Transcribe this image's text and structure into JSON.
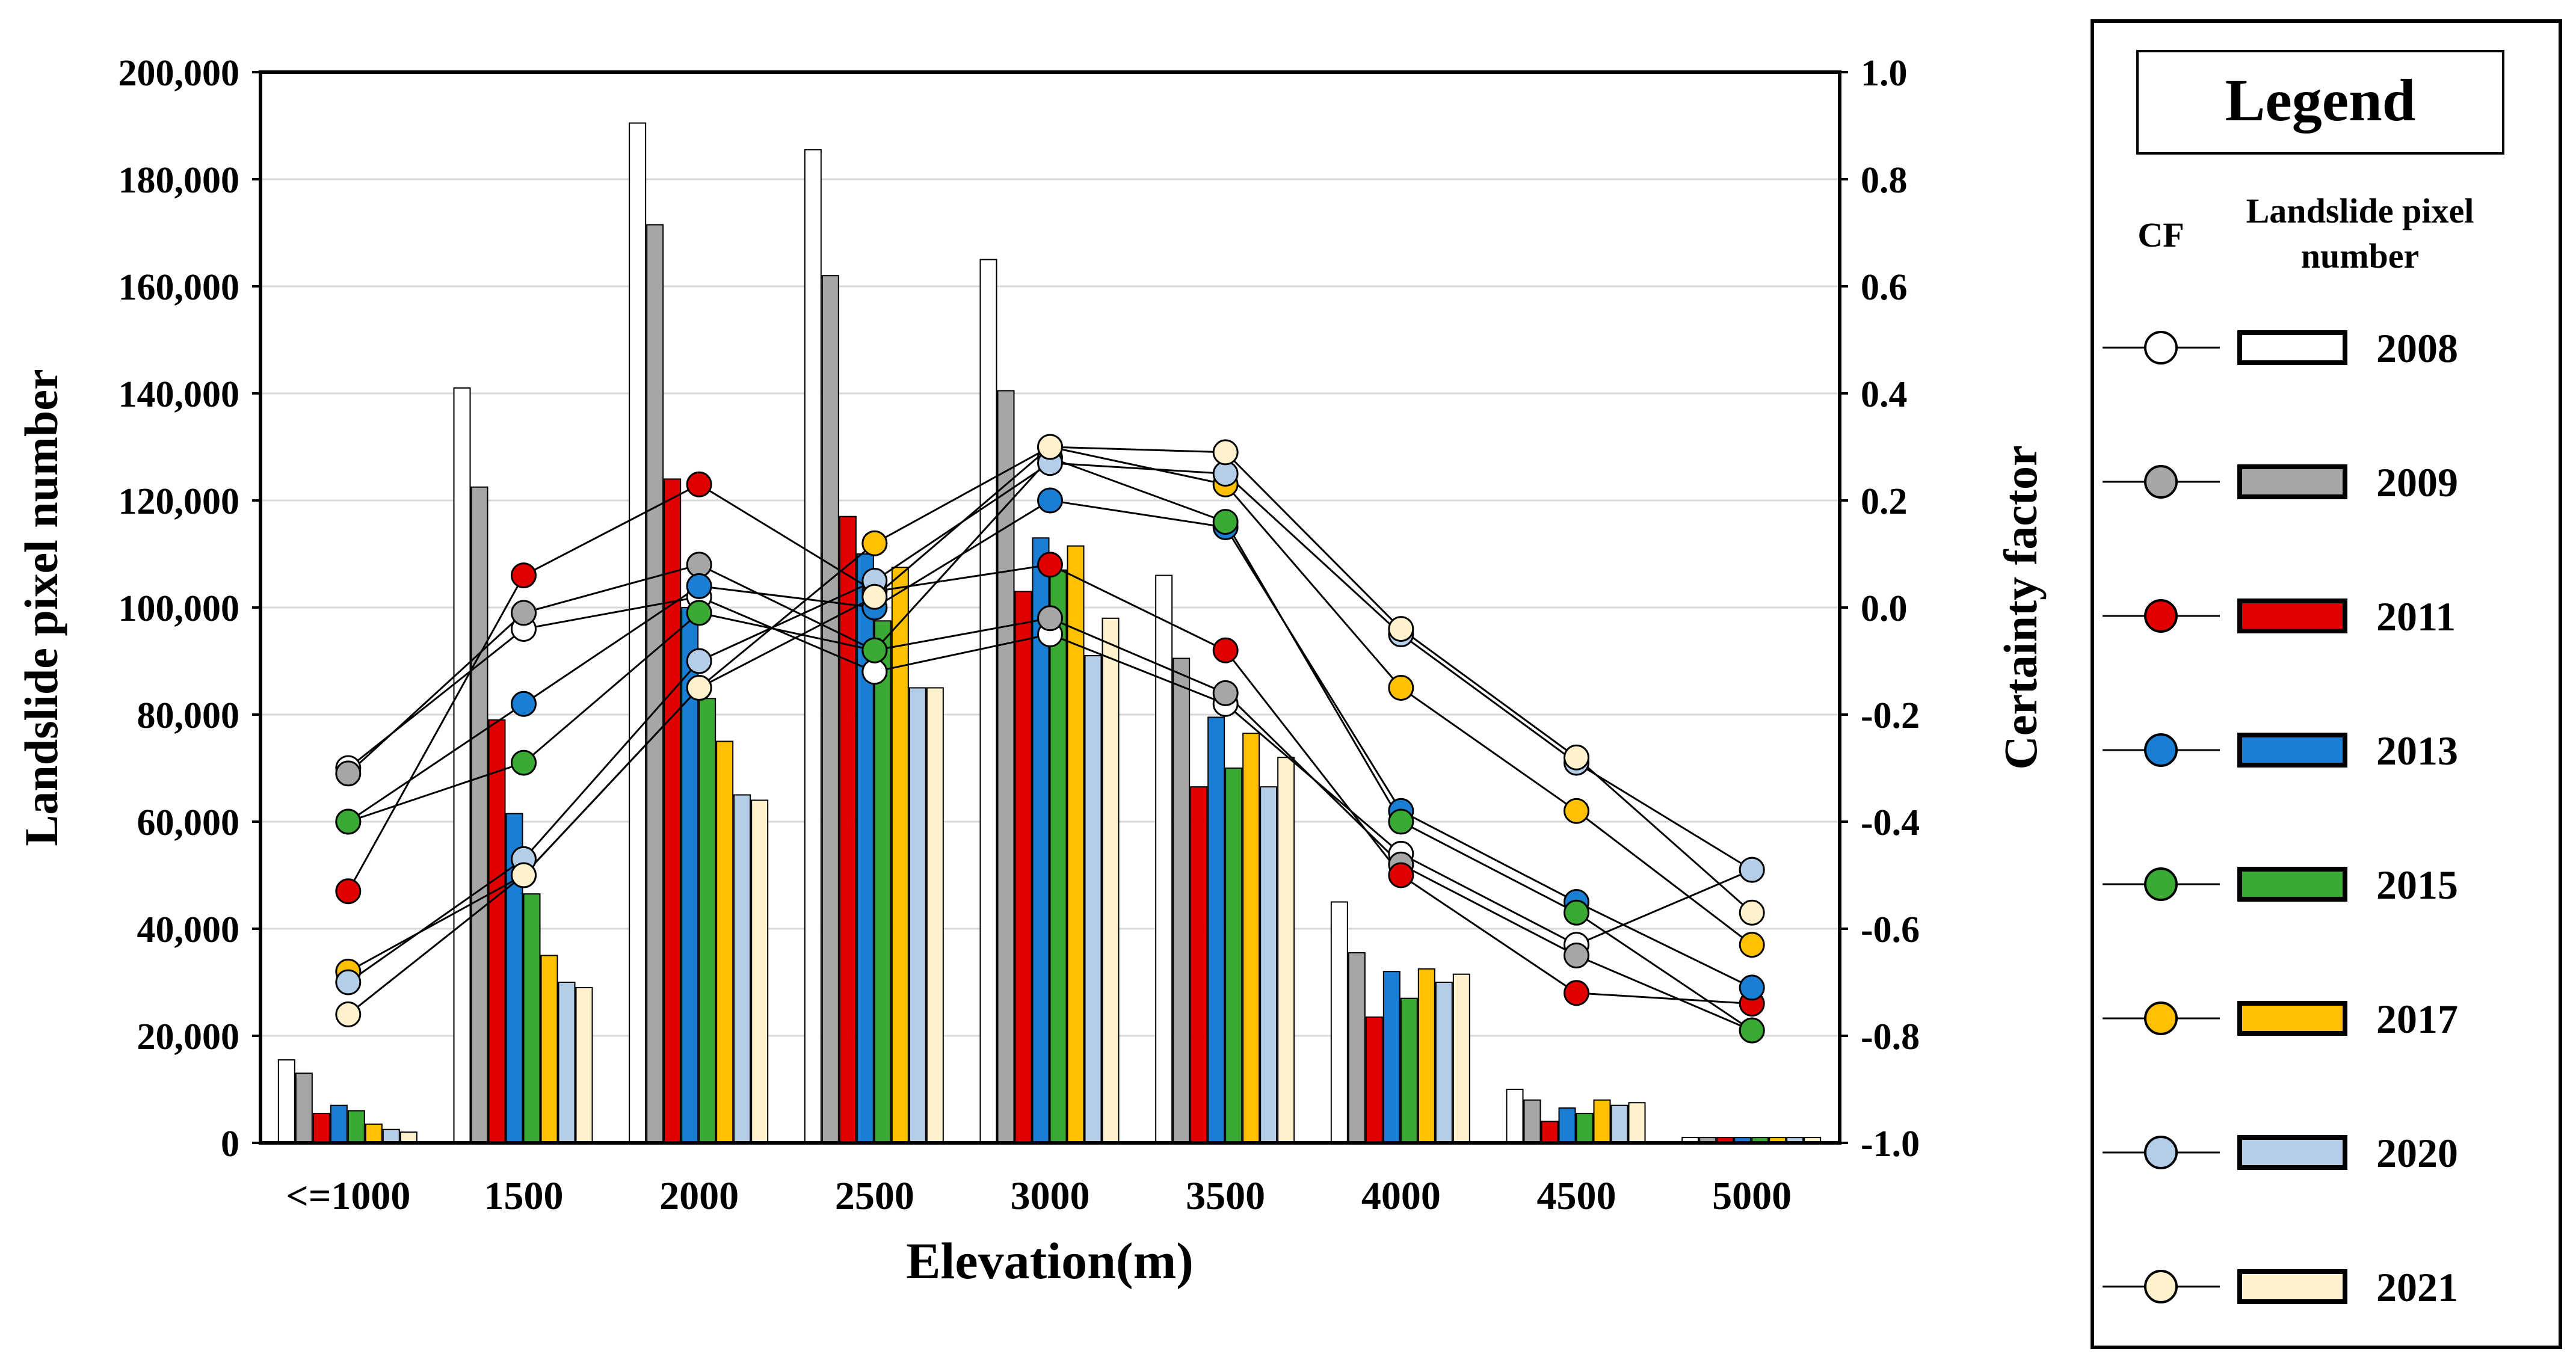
{
  "chart_data": {
    "type": "bar+line",
    "title": "",
    "xlabel": "Elevation(m)",
    "ylabel_left": "Landslide pixel number",
    "ylabel_right": "Certainty factor",
    "categories": [
      "<=1000",
      "1500",
      "2000",
      "2500",
      "3000",
      "3500",
      "4000",
      "4500",
      "5000"
    ],
    "y_left": {
      "min": 0,
      "max": 200000,
      "ticks": [
        0,
        20000,
        40000,
        60000,
        80000,
        100000,
        120000,
        140000,
        160000,
        180000,
        200000
      ],
      "tick_labels": [
        "0",
        "20,000",
        "40,000",
        "60,000",
        "80,000",
        "100,000",
        "120,000",
        "140,000",
        "160,000",
        "180,000",
        "200,000"
      ]
    },
    "y_right": {
      "min": -1.0,
      "max": 1.0,
      "ticks": [
        -1.0,
        -0.8,
        -0.6,
        -0.4,
        -0.2,
        0.0,
        0.2,
        0.4,
        0.6,
        0.8,
        1.0
      ],
      "tick_labels": [
        "-1.0",
        "-0.8",
        "-0.6",
        "-0.4",
        "-0.2",
        "0.0",
        "0.2",
        "0.4",
        "0.6",
        "0.8",
        "1.0"
      ]
    },
    "grid": true,
    "legend_position": "right",
    "series": [
      {
        "name": "2008",
        "color": "#ffffff",
        "bars": [
          15500,
          141000,
          190500,
          185500,
          165000,
          106000,
          45000,
          10000,
          1000
        ],
        "cf": [
          -0.3,
          -0.04,
          0.02,
          -0.12,
          -0.05,
          -0.18,
          -0.46,
          -0.63,
          -0.49
        ]
      },
      {
        "name": "2009",
        "color": "#a6a6a6",
        "bars": [
          13000,
          122500,
          171500,
          162000,
          140500,
          90500,
          35500,
          8000,
          1000
        ],
        "cf": [
          -0.31,
          -0.01,
          0.08,
          -0.08,
          -0.02,
          -0.16,
          -0.48,
          -0.65,
          -0.79
        ]
      },
      {
        "name": "2011",
        "color": "#e00000",
        "bars": [
          5500,
          79000,
          124000,
          117000,
          103000,
          66500,
          23500,
          4000,
          1000
        ],
        "cf": [
          -0.53,
          0.06,
          0.23,
          0.03,
          0.08,
          -0.08,
          -0.5,
          -0.72,
          -0.74
        ]
      },
      {
        "name": "2013",
        "color": "#1a7fd4",
        "bars": [
          7000,
          61500,
          100000,
          110000,
          113000,
          79500,
          32000,
          6500,
          1000
        ],
        "cf": [
          -0.4,
          -0.18,
          0.04,
          0.0,
          0.2,
          0.15,
          -0.38,
          -0.55,
          -0.71
        ]
      },
      {
        "name": "2015",
        "color": "#3aaa35",
        "bars": [
          6000,
          46500,
          83000,
          97500,
          107000,
          70000,
          27000,
          5500,
          1000
        ],
        "cf": [
          -0.4,
          -0.29,
          -0.01,
          -0.08,
          0.28,
          0.16,
          -0.4,
          -0.57,
          -0.79
        ]
      },
      {
        "name": "2017",
        "color": "#ffc000",
        "bars": [
          3500,
          35000,
          75000,
          107500,
          111500,
          76500,
          32500,
          8000,
          1000
        ],
        "cf": [
          -0.68,
          -0.5,
          -0.15,
          0.12,
          0.3,
          0.23,
          -0.15,
          -0.38,
          -0.63
        ]
      },
      {
        "name": "2020",
        "color": "#b4cde8",
        "bars": [
          2500,
          30000,
          65000,
          85000,
          91000,
          66500,
          30000,
          7000,
          1000
        ],
        "cf": [
          -0.7,
          -0.47,
          -0.1,
          0.05,
          0.27,
          0.25,
          -0.05,
          -0.29,
          -0.49
        ]
      },
      {
        "name": "2021",
        "color": "#fff2cc",
        "bars": [
          2000,
          29000,
          64000,
          85000,
          98000,
          72000,
          31500,
          7500,
          1000
        ],
        "cf": [
          -0.76,
          -0.5,
          -0.15,
          0.02,
          0.3,
          0.29,
          -0.04,
          -0.28,
          -0.57
        ]
      }
    ]
  },
  "legend": {
    "title": "Legend",
    "cf_header": "CF",
    "bar_header_line1": "Landslide pixel",
    "bar_header_line2": "number"
  }
}
